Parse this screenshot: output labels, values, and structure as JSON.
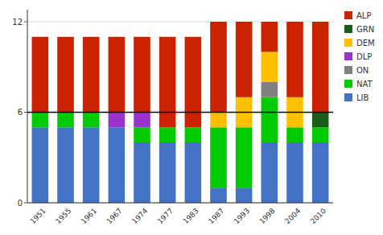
{
  "chart_data": {
    "type": "bar",
    "stacked": true,
    "categories": [
      "1951",
      "1955",
      "1961",
      "1967",
      "1974",
      "1977",
      "1983",
      "1987",
      "1993",
      "1998",
      "2004",
      "2010"
    ],
    "series": [
      {
        "name": "LIB",
        "color": "#4472c4",
        "values": [
          5,
          5,
          5,
          5,
          4,
          4,
          4,
          1,
          1,
          4,
          4,
          4
        ]
      },
      {
        "name": "NAT",
        "color": "#00cc00",
        "values": [
          1,
          1,
          1,
          0,
          1,
          1,
          1,
          4,
          4,
          3,
          1,
          1
        ]
      },
      {
        "name": "ON",
        "color": "#808080",
        "values": [
          0,
          0,
          0,
          0,
          0,
          0,
          0,
          0,
          0,
          1,
          0,
          0
        ]
      },
      {
        "name": "DLP",
        "color": "#9933cc",
        "values": [
          0,
          0,
          0,
          1,
          1,
          0,
          0,
          0,
          0,
          0,
          0,
          0
        ]
      },
      {
        "name": "DEM",
        "color": "#ffc000",
        "values": [
          0,
          0,
          0,
          0,
          0,
          0,
          0,
          1,
          2,
          2,
          2,
          0
        ]
      },
      {
        "name": "GRN",
        "color": "#1a5c1a",
        "values": [
          0,
          0,
          0,
          0,
          0,
          0,
          0,
          0,
          0,
          0,
          0,
          1
        ]
      },
      {
        "name": "ALP",
        "color": "#cc2200",
        "values": [
          5,
          5,
          5,
          5,
          5,
          6,
          6,
          6,
          5,
          2,
          5,
          6
        ]
      }
    ],
    "ylim": [
      0,
      12.8
    ],
    "yticks": [
      0,
      6,
      12
    ],
    "grid": true,
    "legend": "right",
    "reference_line": 6
  }
}
